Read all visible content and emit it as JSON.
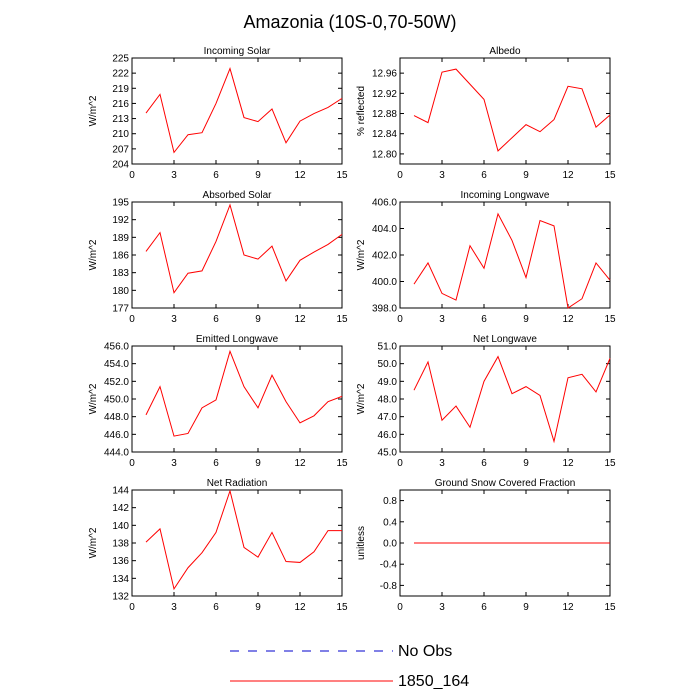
{
  "figure_title": "Amazonia (10S-0,70-50W)",
  "colors": {
    "model": "#ff0000",
    "obs": "#0000cc",
    "axis": "#000000"
  },
  "legend": [
    {
      "label": "No Obs",
      "style": "dashed",
      "color": "#0000cc"
    },
    {
      "label": "1850_164",
      "style": "solid",
      "color": "#ff0000"
    }
  ],
  "chart_data": [
    {
      "type": "line",
      "title": "Incoming Solar",
      "ylabel": "W/m^2",
      "xlabel": "",
      "xlim": [
        0,
        15
      ],
      "xticks": [
        "0",
        "3",
        "6",
        "9",
        "12",
        "15"
      ],
      "ylim": [
        204,
        225
      ],
      "yticks": [
        "204",
        "207",
        "210",
        "213",
        "216",
        "219",
        "222",
        "225"
      ],
      "series": [
        {
          "name": "1850_164",
          "x": [
            1,
            2,
            3,
            4,
            5,
            6,
            7,
            8,
            9,
            10,
            11,
            12,
            13,
            14,
            15
          ],
          "values": [
            214.1,
            217.8,
            206.3,
            209.8,
            210.2,
            216.0,
            222.9,
            213.2,
            212.4,
            214.9,
            208.2,
            212.5,
            214.0,
            215.2,
            217.0
          ]
        }
      ]
    },
    {
      "type": "line",
      "title": "Albedo",
      "ylabel": "% reflected",
      "xlabel": "",
      "xlim": [
        0,
        15
      ],
      "xticks": [
        "0",
        "3",
        "6",
        "9",
        "12",
        "15"
      ],
      "ylim": [
        12.78,
        12.99
      ],
      "yticks": [
        "12.80",
        "12.84",
        "12.88",
        "12.92",
        "12.96"
      ],
      "series": [
        {
          "name": "1850_164",
          "x": [
            1,
            2,
            3,
            4,
            5,
            6,
            7,
            8,
            9,
            10,
            11,
            12,
            13,
            14,
            15
          ],
          "values": [
            12.876,
            12.862,
            12.962,
            12.968,
            12.938,
            12.908,
            12.806,
            12.832,
            12.858,
            12.844,
            12.868,
            12.934,
            12.929,
            12.853,
            12.877
          ]
        }
      ]
    },
    {
      "type": "line",
      "title": "Absorbed Solar",
      "ylabel": "W/m^2",
      "xlabel": "",
      "xlim": [
        0,
        15
      ],
      "xticks": [
        "0",
        "3",
        "6",
        "9",
        "12",
        "15"
      ],
      "ylim": [
        177,
        195
      ],
      "yticks": [
        "177",
        "180",
        "183",
        "186",
        "189",
        "192",
        "195"
      ],
      "series": [
        {
          "name": "1850_164",
          "x": [
            1,
            2,
            3,
            4,
            5,
            6,
            7,
            8,
            9,
            10,
            11,
            12,
            13,
            14,
            15
          ],
          "values": [
            186.6,
            189.8,
            179.6,
            182.9,
            183.3,
            188.3,
            194.5,
            186.0,
            185.3,
            187.5,
            181.6,
            185.1,
            186.5,
            187.8,
            189.5
          ]
        }
      ]
    },
    {
      "type": "line",
      "title": "Incoming Longwave",
      "ylabel": "W/m^2",
      "xlabel": "",
      "xlim": [
        0,
        15
      ],
      "xticks": [
        "0",
        "3",
        "6",
        "9",
        "12",
        "15"
      ],
      "ylim": [
        398.0,
        406.0
      ],
      "yticks": [
        "398.0",
        "400.0",
        "402.0",
        "404.0",
        "406.0"
      ],
      "series": [
        {
          "name": "1850_164",
          "x": [
            1,
            2,
            3,
            4,
            5,
            6,
            7,
            8,
            9,
            10,
            11,
            12,
            13,
            14,
            15
          ],
          "values": [
            399.8,
            401.4,
            399.1,
            398.6,
            402.7,
            401.0,
            405.1,
            403.1,
            400.3,
            404.6,
            404.2,
            398.0,
            398.7,
            401.4,
            400.1
          ]
        }
      ]
    },
    {
      "type": "line",
      "title": "Emitted Longwave",
      "ylabel": "W/m^2",
      "xlabel": "",
      "xlim": [
        0,
        15
      ],
      "xticks": [
        "0",
        "3",
        "6",
        "9",
        "12",
        "15"
      ],
      "ylim": [
        444.0,
        456.0
      ],
      "yticks": [
        "444.0",
        "446.0",
        "448.0",
        "450.0",
        "452.0",
        "454.0",
        "456.0"
      ],
      "series": [
        {
          "name": "1850_164",
          "x": [
            1,
            2,
            3,
            4,
            5,
            6,
            7,
            8,
            9,
            10,
            11,
            12,
            13,
            14,
            15
          ],
          "values": [
            448.2,
            451.4,
            445.8,
            446.1,
            449.0,
            449.9,
            455.4,
            451.4,
            449.0,
            452.7,
            449.7,
            447.3,
            448.1,
            449.7,
            450.3
          ]
        }
      ]
    },
    {
      "type": "line",
      "title": "Net Longwave",
      "ylabel": "W/m^2",
      "xlabel": "",
      "xlim": [
        0,
        15
      ],
      "xticks": [
        "0",
        "3",
        "6",
        "9",
        "12",
        "15"
      ],
      "ylim": [
        45.0,
        51.0
      ],
      "yticks": [
        "45.0",
        "46.0",
        "47.0",
        "48.0",
        "49.0",
        "50.0",
        "51.0"
      ],
      "series": [
        {
          "name": "1850_164",
          "x": [
            1,
            2,
            3,
            4,
            5,
            6,
            7,
            8,
            9,
            10,
            11,
            12,
            13,
            14,
            15
          ],
          "values": [
            48.5,
            50.1,
            46.8,
            47.6,
            46.4,
            49.0,
            50.4,
            48.3,
            48.7,
            48.2,
            45.6,
            49.2,
            49.4,
            48.4,
            50.3
          ]
        }
      ]
    },
    {
      "type": "line",
      "title": "Net Radiation",
      "ylabel": "W/m^2",
      "xlabel": "",
      "xlim": [
        0,
        15
      ],
      "xticks": [
        "0",
        "3",
        "6",
        "9",
        "12",
        "15"
      ],
      "ylim": [
        132,
        144
      ],
      "yticks": [
        "132",
        "134",
        "136",
        "138",
        "140",
        "142",
        "144"
      ],
      "series": [
        {
          "name": "1850_164",
          "x": [
            1,
            2,
            3,
            4,
            5,
            6,
            7,
            8,
            9,
            10,
            11,
            12,
            13,
            14,
            15
          ],
          "values": [
            138.1,
            139.6,
            132.8,
            135.2,
            136.9,
            139.2,
            143.9,
            137.5,
            136.4,
            139.2,
            135.9,
            135.8,
            137.0,
            139.4,
            139.4
          ]
        }
      ]
    },
    {
      "type": "line",
      "title": "Ground Snow Covered Fraction",
      "ylabel": "unitless",
      "xlabel": "",
      "xlim": [
        0,
        15
      ],
      "xticks": [
        "0",
        "3",
        "6",
        "9",
        "12",
        "15"
      ],
      "ylim": [
        -1.0,
        1.0
      ],
      "yticks": [
        "-0.8",
        "-0.4",
        "0.0",
        "0.4",
        "0.8"
      ],
      "series": [
        {
          "name": "1850_164",
          "x": [
            1,
            2,
            3,
            4,
            5,
            6,
            7,
            8,
            9,
            10,
            11,
            12,
            13,
            14,
            15
          ],
          "values": [
            0,
            0,
            0,
            0,
            0,
            0,
            0,
            0,
            0,
            0,
            0,
            0,
            0,
            0,
            0
          ]
        }
      ]
    }
  ]
}
